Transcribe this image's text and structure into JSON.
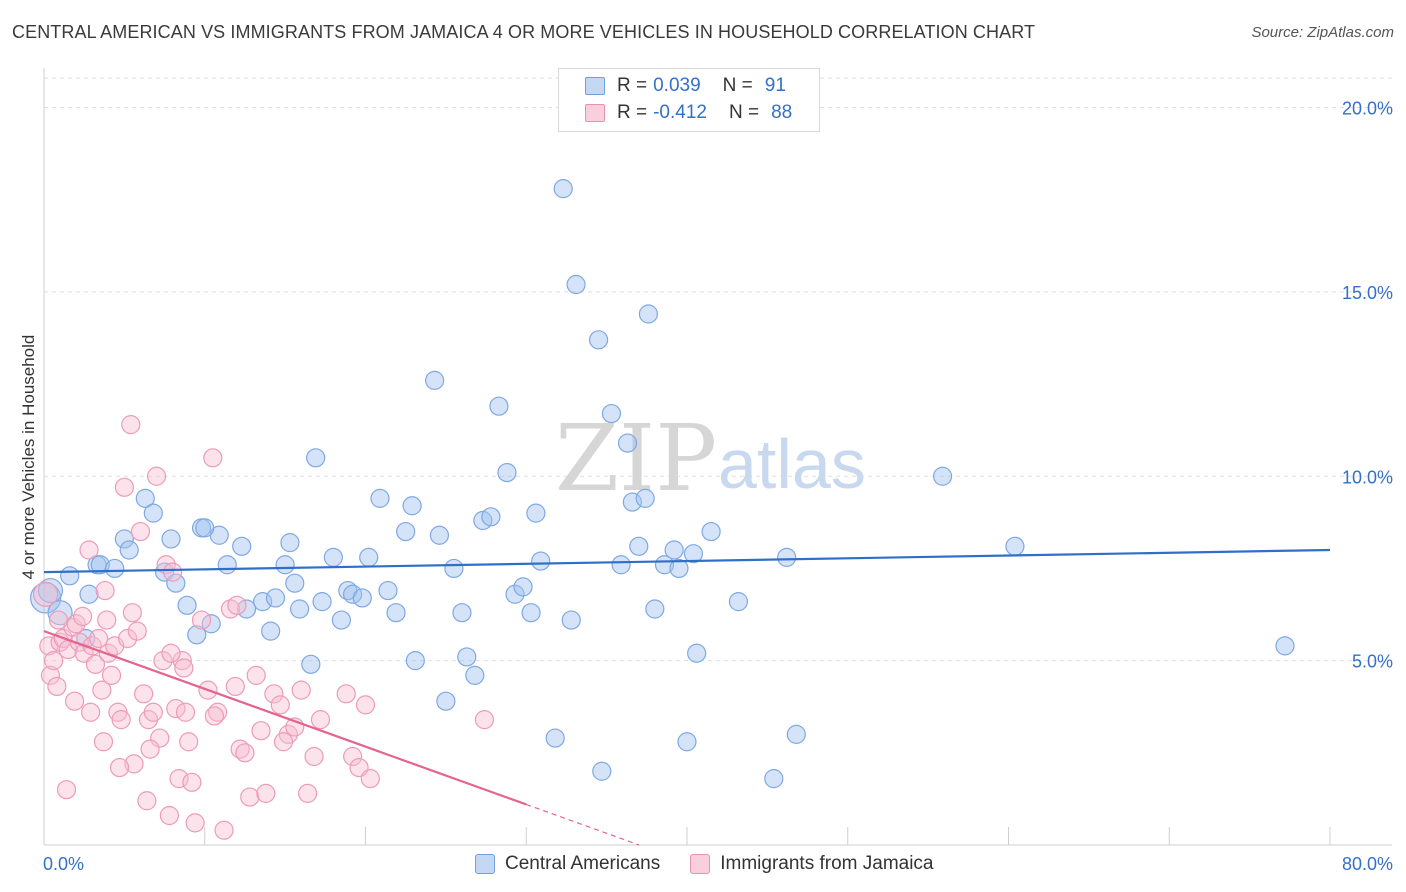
{
  "title": "CENTRAL AMERICAN VS IMMIGRANTS FROM JAMAICA 4 OR MORE VEHICLES IN HOUSEHOLD CORRELATION CHART",
  "source": "Source: ZipAtlas.com",
  "watermark": {
    "zip": "ZIP",
    "atlas": "atlas"
  },
  "legend_top": [
    {
      "r_label": "R =",
      "r_value": "0.039",
      "n_label": "N =",
      "n_value": "91",
      "color": "#6f9fe0"
    },
    {
      "r_label": "R =",
      "r_value": "-0.412",
      "n_label": "N =",
      "n_value": "88",
      "color": "#ec8fb0"
    }
  ],
  "legend_bottom": [
    {
      "label": "Central Americans",
      "color": "#6f9fe0"
    },
    {
      "label": "Immigrants from Jamaica",
      "color": "#ec8fb0"
    }
  ],
  "chart_data": {
    "type": "scatter",
    "title": "CENTRAL AMERICAN VS IMMIGRANTS FROM JAMAICA 4 OR MORE VEHICLES IN HOUSEHOLD CORRELATION CHART",
    "xlabel": "",
    "ylabel": "4 or more Vehicles in Household",
    "xlim": [
      0,
      80
    ],
    "ylim": [
      0,
      20.8
    ],
    "x_tick_labels": [
      "0.0%",
      "80.0%"
    ],
    "y_ticks": [
      5,
      10,
      15,
      20
    ],
    "y_tick_labels": [
      "5.0%",
      "10.0%",
      "15.0%",
      "20.0%"
    ],
    "grid": true,
    "legend_position": "top-center",
    "series": [
      {
        "name": "Central Americans",
        "color": "#6f9fe0",
        "trend": {
          "x": [
            0,
            80
          ],
          "y": [
            7.4,
            8.0
          ]
        },
        "points": [
          [
            0.1,
            6.7
          ],
          [
            0.4,
            6.9
          ],
          [
            1.0,
            6.3
          ],
          [
            1.6,
            7.3
          ],
          [
            2.8,
            6.8
          ],
          [
            2.6,
            5.6
          ],
          [
            3.3,
            7.6
          ],
          [
            3.5,
            7.6
          ],
          [
            4.4,
            7.5
          ],
          [
            5.0,
            8.3
          ],
          [
            5.3,
            8.0
          ],
          [
            6.3,
            9.4
          ],
          [
            6.8,
            9.0
          ],
          [
            7.5,
            7.4
          ],
          [
            7.9,
            8.3
          ],
          [
            8.2,
            7.1
          ],
          [
            8.9,
            6.5
          ],
          [
            9.5,
            5.7
          ],
          [
            9.8,
            8.6
          ],
          [
            10.4,
            6.0
          ],
          [
            10.9,
            8.4
          ],
          [
            11.4,
            7.6
          ],
          [
            12.3,
            8.1
          ],
          [
            12.6,
            6.4
          ],
          [
            13.6,
            6.6
          ],
          [
            14.1,
            5.8
          ],
          [
            14.4,
            6.7
          ],
          [
            15.0,
            7.6
          ],
          [
            15.3,
            8.2
          ],
          [
            15.6,
            7.1
          ],
          [
            15.9,
            6.4
          ],
          [
            16.6,
            4.9
          ],
          [
            16.9,
            10.5
          ],
          [
            17.3,
            6.6
          ],
          [
            18.0,
            7.8
          ],
          [
            18.5,
            6.1
          ],
          [
            18.9,
            6.9
          ],
          [
            19.2,
            6.8
          ],
          [
            19.8,
            6.7
          ],
          [
            20.2,
            7.8
          ],
          [
            20.9,
            9.4
          ],
          [
            21.4,
            6.9
          ],
          [
            21.9,
            6.3
          ],
          [
            22.5,
            8.5
          ],
          [
            22.9,
            9.2
          ],
          [
            23.1,
            5.0
          ],
          [
            24.3,
            12.6
          ],
          [
            24.6,
            8.4
          ],
          [
            25.0,
            3.9
          ],
          [
            25.5,
            7.5
          ],
          [
            26.0,
            6.3
          ],
          [
            26.3,
            5.1
          ],
          [
            26.8,
            4.6
          ],
          [
            27.3,
            8.8
          ],
          [
            27.8,
            8.9
          ],
          [
            28.3,
            11.9
          ],
          [
            28.8,
            10.1
          ],
          [
            29.3,
            6.8
          ],
          [
            29.8,
            7.0
          ],
          [
            30.3,
            6.3
          ],
          [
            30.6,
            9.0
          ],
          [
            30.9,
            7.7
          ],
          [
            31.8,
            2.9
          ],
          [
            32.3,
            17.8
          ],
          [
            32.8,
            6.1
          ],
          [
            33.1,
            15.2
          ],
          [
            34.5,
            13.7
          ],
          [
            34.7,
            2.0
          ],
          [
            35.3,
            11.7
          ],
          [
            35.9,
            7.6
          ],
          [
            36.3,
            10.9
          ],
          [
            36.6,
            9.3
          ],
          [
            37.0,
            8.1
          ],
          [
            37.4,
            9.4
          ],
          [
            37.6,
            14.4
          ],
          [
            38.0,
            6.4
          ],
          [
            38.6,
            7.6
          ],
          [
            39.2,
            8.0
          ],
          [
            39.5,
            7.5
          ],
          [
            40.0,
            2.8
          ],
          [
            40.4,
            7.9
          ],
          [
            40.6,
            5.2
          ],
          [
            41.5,
            8.5
          ],
          [
            43.2,
            6.6
          ],
          [
            45.4,
            1.8
          ],
          [
            46.2,
            7.8
          ],
          [
            46.8,
            3.0
          ],
          [
            55.9,
            10.0
          ],
          [
            60.4,
            8.1
          ],
          [
            77.2,
            5.4
          ],
          [
            10.0,
            8.6
          ]
        ]
      },
      {
        "name": "Immigrants from Jamaica",
        "color": "#ec8fb0",
        "trend": {
          "x": [
            0,
            30
          ],
          "y": [
            5.8,
            1.1
          ]
        },
        "points": [
          [
            0.1,
            6.8
          ],
          [
            0.3,
            5.4
          ],
          [
            0.4,
            4.6
          ],
          [
            0.8,
            4.3
          ],
          [
            1.0,
            5.5
          ],
          [
            1.2,
            5.6
          ],
          [
            1.5,
            5.3
          ],
          [
            1.8,
            5.9
          ],
          [
            2.0,
            6.0
          ],
          [
            2.2,
            5.5
          ],
          [
            2.5,
            5.2
          ],
          [
            2.8,
            8.0
          ],
          [
            3.0,
            5.4
          ],
          [
            3.2,
            4.9
          ],
          [
            3.4,
            5.6
          ],
          [
            3.6,
            4.2
          ],
          [
            3.8,
            6.9
          ],
          [
            4.0,
            5.2
          ],
          [
            4.2,
            4.6
          ],
          [
            4.4,
            5.4
          ],
          [
            4.6,
            3.6
          ],
          [
            4.8,
            3.4
          ],
          [
            5.0,
            9.7
          ],
          [
            5.2,
            5.6
          ],
          [
            5.4,
            11.4
          ],
          [
            5.6,
            2.2
          ],
          [
            5.8,
            5.8
          ],
          [
            6.0,
            8.5
          ],
          [
            6.2,
            4.1
          ],
          [
            6.5,
            3.4
          ],
          [
            6.8,
            3.6
          ],
          [
            7.0,
            10.0
          ],
          [
            7.2,
            2.9
          ],
          [
            7.4,
            5.0
          ],
          [
            7.6,
            7.6
          ],
          [
            7.8,
            0.8
          ],
          [
            8.0,
            7.4
          ],
          [
            8.2,
            3.7
          ],
          [
            8.4,
            1.8
          ],
          [
            8.6,
            5.0
          ],
          [
            8.8,
            3.6
          ],
          [
            9.0,
            2.8
          ],
          [
            9.4,
            0.6
          ],
          [
            9.8,
            6.1
          ],
          [
            10.2,
            4.2
          ],
          [
            10.5,
            10.5
          ],
          [
            10.8,
            3.6
          ],
          [
            11.2,
            0.4
          ],
          [
            11.6,
            6.4
          ],
          [
            12.2,
            2.6
          ],
          [
            12.5,
            2.5
          ],
          [
            12.8,
            1.3
          ],
          [
            13.2,
            4.6
          ],
          [
            13.5,
            3.1
          ],
          [
            13.8,
            1.4
          ],
          [
            14.3,
            4.1
          ],
          [
            14.7,
            3.8
          ],
          [
            15.2,
            3.0
          ],
          [
            15.6,
            3.2
          ],
          [
            16.0,
            4.2
          ],
          [
            16.4,
            1.4
          ],
          [
            16.8,
            2.4
          ],
          [
            17.2,
            3.4
          ],
          [
            18.8,
            4.1
          ],
          [
            19.2,
            2.4
          ],
          [
            19.6,
            2.1
          ],
          [
            20.0,
            3.8
          ],
          [
            20.3,
            1.8
          ],
          [
            27.4,
            3.4
          ],
          [
            0.6,
            5.0
          ],
          [
            1.4,
            1.5
          ],
          [
            2.4,
            6.2
          ],
          [
            3.9,
            6.1
          ],
          [
            4.7,
            2.1
          ],
          [
            5.5,
            6.3
          ],
          [
            6.4,
            1.2
          ],
          [
            7.9,
            5.2
          ],
          [
            9.2,
            1.7
          ],
          [
            10.6,
            3.5
          ],
          [
            11.9,
            4.3
          ],
          [
            0.9,
            6.1
          ],
          [
            1.9,
            3.9
          ],
          [
            2.9,
            3.6
          ],
          [
            3.7,
            2.8
          ],
          [
            6.6,
            2.6
          ],
          [
            8.7,
            4.8
          ],
          [
            12.0,
            6.5
          ],
          [
            14.9,
            2.8
          ]
        ]
      }
    ]
  }
}
